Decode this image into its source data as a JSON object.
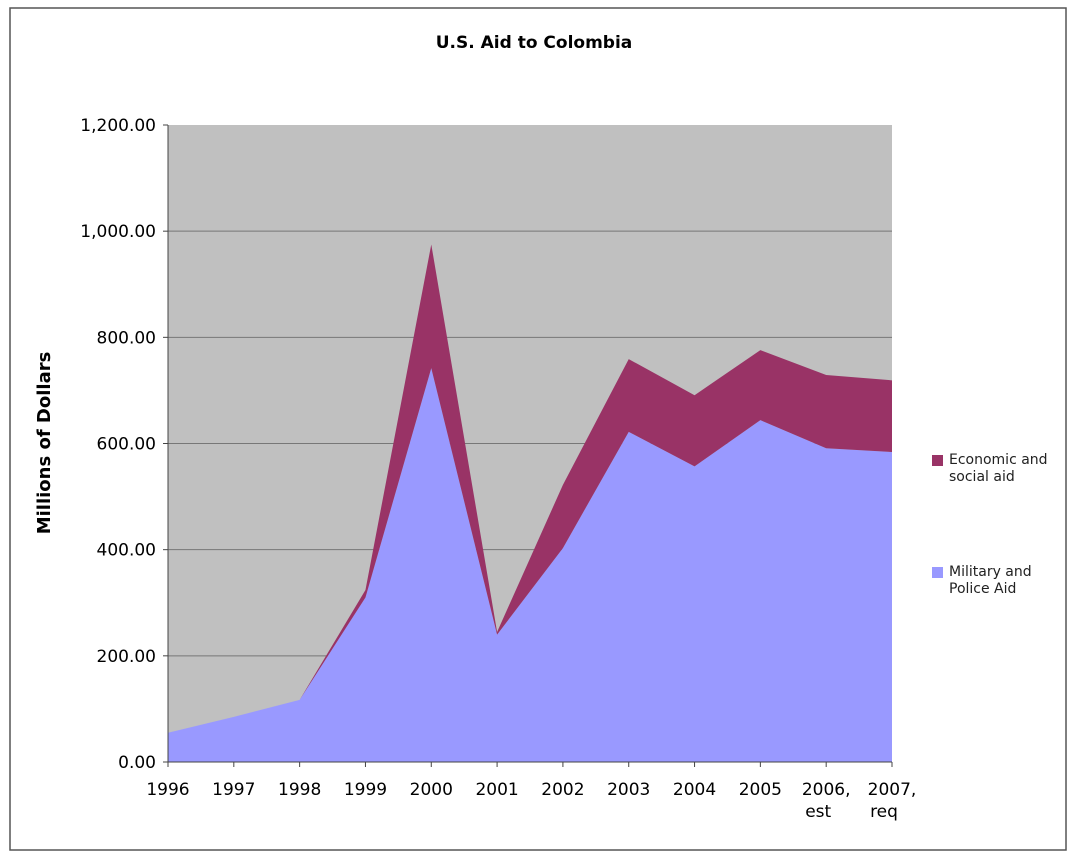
{
  "chart_data": {
    "type": "stacked_area",
    "title": "U.S. Aid to Colombia",
    "y_label": "Millions of Dollars",
    "categories": [
      "1996",
      "1997",
      "1998",
      "1999",
      "2000",
      "2001",
      "2002",
      "2003",
      "2004",
      "2005",
      "2006, est",
      "2007, req"
    ],
    "series": [
      {
        "name": "Military and Police Aid",
        "color": "#9999ff",
        "values": [
          55,
          85,
          117,
          310,
          742,
          240,
          403,
          622,
          557,
          644,
          591,
          584
        ]
      },
      {
        "name": "Economic and social aid",
        "color": "#993366",
        "values": [
          0,
          0,
          0,
          14,
          233,
          5,
          119,
          137,
          134,
          132,
          138,
          135
        ]
      }
    ],
    "ylim": [
      0,
      1200
    ],
    "yticks": [
      {
        "value": 0,
        "label": "0.00"
      },
      {
        "value": 200,
        "label": "200.00"
      },
      {
        "value": 400,
        "label": "400.00"
      },
      {
        "value": 600,
        "label": "600.00"
      },
      {
        "value": 800,
        "label": "800.00"
      },
      {
        "value": 1000,
        "label": "1,000.00"
      },
      {
        "value": 1200,
        "label": "1,200.00"
      }
    ],
    "grid": true,
    "legend": "right"
  }
}
